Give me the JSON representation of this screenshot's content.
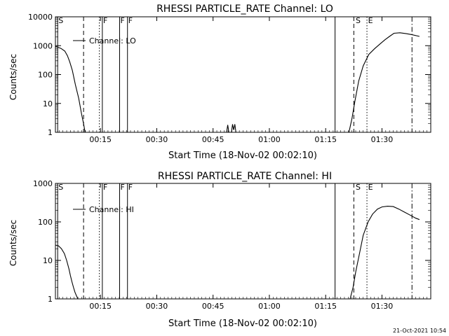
{
  "chart_data": [
    {
      "type": "line",
      "title": "RHESSI PARTICLE_RATE Channel: LO",
      "xlabel": "Start Time (18-Nov-02 00:02:10)",
      "ylabel": "Counts/sec",
      "yscale": "log",
      "ylim": [
        1,
        10000
      ],
      "xlim_minutes": [
        3,
        103
      ],
      "x_ticks": [
        {
          "minute": 15,
          "label": "00:15"
        },
        {
          "minute": 30,
          "label": "00:30"
        },
        {
          "minute": 45,
          "label": "00:45"
        },
        {
          "minute": 60,
          "label": "01:00"
        },
        {
          "minute": 75,
          "label": "01:15"
        },
        {
          "minute": 90,
          "label": "01:30"
        }
      ],
      "y_ticks": [
        {
          "value": 1,
          "label": "1"
        },
        {
          "value": 10,
          "label": "10"
        },
        {
          "value": 100,
          "label": "100"
        },
        {
          "value": 1000,
          "label": "1000"
        },
        {
          "value": 10000,
          "label": "10000"
        }
      ],
      "legend": {
        "label": "Channel: LO",
        "placement": "top-left"
      },
      "series": [
        {
          "name": "Channel: LO",
          "x": [
            3.0,
            3.5,
            4.5,
            5.5,
            6.2,
            6.8,
            7.5,
            8.3,
            9.2,
            10.0,
            10.5,
            10.9
          ],
          "y": [
            950,
            900,
            800,
            650,
            450,
            280,
            140,
            45,
            15,
            4,
            2,
            1
          ]
        },
        {
          "name": "Channel: LO spike 1",
          "x": [
            48.6,
            48.9,
            49.2
          ],
          "y": [
            1,
            1.8,
            1
          ]
        },
        {
          "name": "Channel: LO spike 2",
          "x": [
            49.9,
            50.2,
            50.5,
            50.8,
            51.1
          ],
          "y": [
            1,
            1.9,
            1.2,
            1.9,
            1
          ]
        },
        {
          "name": "Channel: LO rise",
          "x": [
            81.2,
            82.0,
            82.8,
            83.8,
            85.0,
            86.5,
            88.0,
            89.5,
            90.8,
            92.0,
            93.2,
            94.8,
            96.5,
            98.0,
            100.0
          ],
          "y": [
            1,
            3,
            12,
            60,
            200,
            500,
            780,
            1150,
            1600,
            2100,
            2700,
            2800,
            2600,
            2400,
            2100
          ]
        }
      ],
      "vlines": [
        {
          "minute": 3.6,
          "style": "solid"
        },
        {
          "minute": 10.5,
          "style": "dashed"
        },
        {
          "minute": 14.7,
          "style": "dotted"
        },
        {
          "minute": 15.5,
          "style": "solid"
        },
        {
          "minute": 20.1,
          "style": "solid"
        },
        {
          "minute": 22.2,
          "style": "solid"
        },
        {
          "minute": 77.5,
          "style": "solid"
        },
        {
          "minute": 82.5,
          "style": "dashed"
        },
        {
          "minute": 86.0,
          "style": "dotted"
        },
        {
          "minute": 98.0,
          "style": "dashdot"
        }
      ],
      "flag_labels": [
        {
          "minute": 3.8,
          "label": "S"
        },
        {
          "minute": 15.7,
          "label": "F"
        },
        {
          "minute": 20.3,
          "label": "F"
        },
        {
          "minute": 22.4,
          "label": "F"
        },
        {
          "minute": 83.0,
          "label": "S"
        },
        {
          "minute": 86.3,
          "label": "E"
        }
      ]
    },
    {
      "type": "line",
      "title": "RHESSI PARTICLE_RATE Channel: HI",
      "xlabel": "Start Time (18-Nov-02 00:02:10)",
      "ylabel": "Counts/sec",
      "yscale": "log",
      "ylim": [
        1,
        1000
      ],
      "xlim_minutes": [
        3,
        103
      ],
      "x_ticks": [
        {
          "minute": 15,
          "label": "00:15"
        },
        {
          "minute": 30,
          "label": "00:30"
        },
        {
          "minute": 45,
          "label": "00:45"
        },
        {
          "minute": 60,
          "label": "01:00"
        },
        {
          "minute": 75,
          "label": "01:15"
        },
        {
          "minute": 90,
          "label": "01:30"
        }
      ],
      "y_ticks": [
        {
          "value": 1,
          "label": "1"
        },
        {
          "value": 10,
          "label": "10"
        },
        {
          "value": 100,
          "label": "100"
        },
        {
          "value": 1000,
          "label": "1000"
        }
      ],
      "legend": {
        "label": "Channel: HI",
        "placement": "top-left"
      },
      "series": [
        {
          "name": "Channel: HI",
          "x": [
            3.0,
            3.8,
            4.6,
            5.4,
            6.0,
            6.6,
            7.0,
            7.4,
            7.8,
            8.2,
            8.6,
            9.0
          ],
          "y": [
            25,
            24,
            20,
            15,
            10,
            6,
            4,
            2.8,
            2,
            1.5,
            1.2,
            1
          ]
        },
        {
          "name": "Channel: HI rise",
          "x": [
            81.5,
            82.3,
            83.0,
            84.0,
            85.0,
            86.3,
            87.5,
            88.8,
            90.0,
            91.5,
            93.0,
            94.5,
            96.0,
            97.5,
            99.0,
            100.0
          ],
          "y": [
            1,
            2,
            5,
            15,
            45,
            100,
            160,
            215,
            245,
            255,
            250,
            215,
            180,
            150,
            125,
            115
          ]
        }
      ],
      "vlines": [
        {
          "minute": 3.6,
          "style": "solid"
        },
        {
          "minute": 10.5,
          "style": "dashed"
        },
        {
          "minute": 14.7,
          "style": "dotted"
        },
        {
          "minute": 15.5,
          "style": "solid"
        },
        {
          "minute": 20.1,
          "style": "solid"
        },
        {
          "minute": 22.2,
          "style": "solid"
        },
        {
          "minute": 77.5,
          "style": "solid"
        },
        {
          "minute": 82.5,
          "style": "dashed"
        },
        {
          "minute": 86.0,
          "style": "dotted"
        },
        {
          "minute": 98.0,
          "style": "dashdot"
        }
      ],
      "flag_labels": [
        {
          "minute": 3.8,
          "label": "S"
        },
        {
          "minute": 15.7,
          "label": "F"
        },
        {
          "minute": 20.3,
          "label": "F"
        },
        {
          "minute": 22.4,
          "label": "F"
        },
        {
          "minute": 83.0,
          "label": "S"
        },
        {
          "minute": 86.3,
          "label": "E"
        }
      ]
    }
  ],
  "footer": {
    "timestamp": "21-Oct-2021 10:54"
  }
}
